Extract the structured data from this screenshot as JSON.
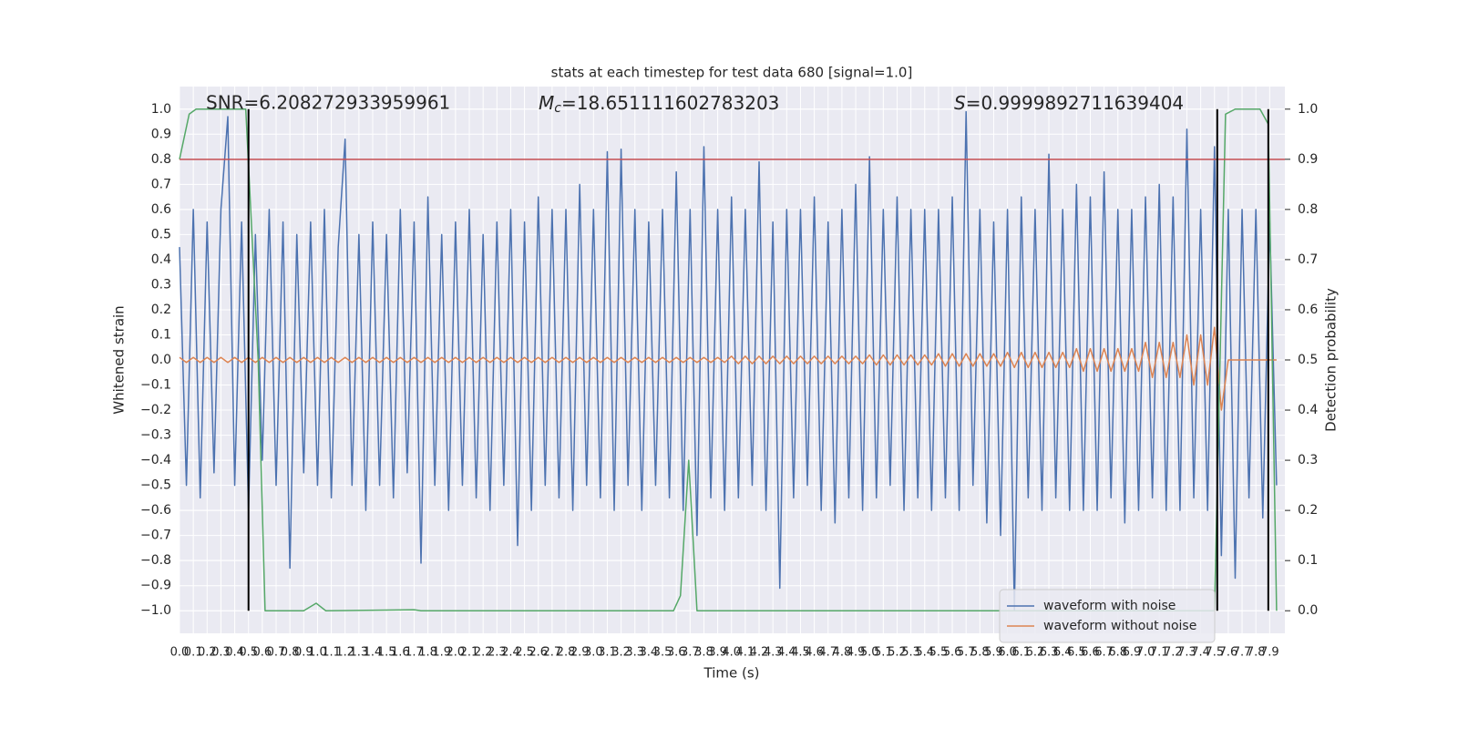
{
  "chart_data": {
    "type": "line",
    "title": "stats at each timestep for test data 680 [signal=1.0]",
    "xlabel": "Time (s)",
    "ylabel": "Whitened strain",
    "y2label": "Detection probability",
    "annotations": [
      {
        "text": "SNR=6.208272933959961"
      },
      {
        "symbol": "M",
        "subscript": "c",
        "text": "=18.651111602783203"
      },
      {
        "symbol": "S",
        "text": "=0.9999892711639404"
      }
    ],
    "x": [
      0,
      0.05,
      0.1,
      0.15,
      0.2,
      0.25,
      0.3,
      0.35,
      0.4,
      0.45,
      0.5,
      0.55,
      0.6,
      0.65,
      0.7,
      0.75,
      0.8,
      0.85,
      0.9,
      0.95,
      1,
      1.05,
      1.1,
      1.15,
      1.2,
      1.25,
      1.3,
      1.35,
      1.4,
      1.45,
      1.5,
      1.55,
      1.6,
      1.65,
      1.7,
      1.75,
      1.8,
      1.85,
      1.9,
      1.95,
      2,
      2.05,
      2.1,
      2.15,
      2.2,
      2.25,
      2.3,
      2.35,
      2.4,
      2.45,
      2.5,
      2.55,
      2.6,
      2.65,
      2.7,
      2.75,
      2.8,
      2.85,
      2.9,
      2.95,
      3,
      3.05,
      3.1,
      3.15,
      3.2,
      3.25,
      3.3,
      3.35,
      3.4,
      3.45,
      3.5,
      3.55,
      3.6,
      3.65,
      3.7,
      3.75,
      3.8,
      3.85,
      3.9,
      3.95,
      4,
      4.05,
      4.1,
      4.15,
      4.2,
      4.25,
      4.3,
      4.35,
      4.4,
      4.45,
      4.5,
      4.55,
      4.6,
      4.65,
      4.7,
      4.75,
      4.8,
      4.85,
      4.9,
      4.95,
      5,
      5.05,
      5.1,
      5.15,
      5.2,
      5.25,
      5.3,
      5.35,
      5.4,
      5.45,
      5.5,
      5.55,
      5.6,
      5.65,
      5.7,
      5.75,
      5.8,
      5.85,
      5.9,
      5.95,
      6,
      6.05,
      6.1,
      6.15,
      6.2,
      6.25,
      6.3,
      6.35,
      6.4,
      6.45,
      6.5,
      6.55,
      6.6,
      6.65,
      6.7,
      6.75,
      6.8,
      6.85,
      6.9,
      6.95,
      7,
      7.05,
      7.1,
      7.15,
      7.2,
      7.25,
      7.3,
      7.35,
      7.4,
      7.45,
      7.5,
      7.55,
      7.6,
      7.65,
      7.7,
      7.75,
      7.8,
      7.85,
      7.9,
      7.95
    ],
    "series": [
      {
        "name": "waveform with noise",
        "color": "#4c72b0",
        "values": [
          0.45,
          -0.5,
          0.6,
          -0.55,
          0.55,
          -0.45,
          0.6,
          0.97,
          -0.5,
          0.55,
          -0.6,
          0.5,
          -0.4,
          0.6,
          -0.5,
          0.55,
          -0.83,
          0.5,
          -0.45,
          0.55,
          -0.5,
          0.6,
          -0.55,
          0.45,
          0.88,
          -0.5,
          0.5,
          -0.6,
          0.55,
          -0.5,
          0.5,
          -0.55,
          0.6,
          -0.45,
          0.55,
          -0.81,
          0.65,
          -0.5,
          0.5,
          -0.6,
          0.55,
          -0.5,
          0.6,
          -0.55,
          0.5,
          -0.6,
          0.55,
          -0.5,
          0.6,
          -0.74,
          0.55,
          -0.6,
          0.65,
          -0.5,
          0.6,
          -0.55,
          0.6,
          -0.6,
          0.7,
          -0.5,
          0.6,
          -0.55,
          0.83,
          -0.6,
          0.84,
          -0.5,
          0.6,
          -0.6,
          0.55,
          -0.5,
          0.6,
          -0.55,
          0.75,
          -0.6,
          0.6,
          -0.7,
          0.85,
          -0.55,
          0.6,
          -0.6,
          0.65,
          -0.55,
          0.6,
          -0.5,
          0.79,
          -0.6,
          0.55,
          -0.91,
          0.6,
          -0.55,
          0.6,
          -0.5,
          0.65,
          -0.6,
          0.55,
          -0.65,
          0.6,
          -0.55,
          0.7,
          -0.6,
          0.81,
          -0.55,
          0.6,
          -0.5,
          0.65,
          -0.6,
          0.6,
          -0.55,
          0.6,
          -0.6,
          0.6,
          -0.55,
          0.65,
          -0.6,
          0.99,
          -0.5,
          0.6,
          -0.65,
          0.55,
          -0.7,
          0.6,
          -1.0,
          0.65,
          -0.55,
          0.6,
          -0.6,
          0.82,
          -0.55,
          0.6,
          -0.6,
          0.7,
          -0.6,
          0.65,
          -0.6,
          0.75,
          -0.55,
          0.6,
          -0.65,
          0.6,
          -0.6,
          0.65,
          -0.55,
          0.7,
          -0.6,
          0.65,
          -0.6,
          0.92,
          -0.55,
          0.6,
          -0.6,
          0.85,
          -0.78,
          0.6,
          -0.87,
          0.6,
          -0.55,
          0.6,
          -0.63,
          0.55,
          -0.5
        ]
      },
      {
        "name": "waveform without noise",
        "color": "#dd8452",
        "values": [
          0.01,
          -0.01,
          0.01,
          -0.01,
          0.01,
          -0.01,
          0.01,
          -0.01,
          0.01,
          -0.01,
          0.01,
          -0.01,
          0.01,
          -0.01,
          0.01,
          -0.01,
          0.01,
          -0.01,
          0.01,
          -0.01,
          0.01,
          -0.01,
          0.01,
          -0.01,
          0.01,
          -0.01,
          0.01,
          -0.01,
          0.01,
          -0.01,
          0.01,
          -0.01,
          0.01,
          -0.01,
          0.01,
          -0.01,
          0.01,
          -0.01,
          0.01,
          -0.01,
          0.01,
          -0.01,
          0.01,
          -0.01,
          0.01,
          -0.01,
          0.01,
          -0.01,
          0.01,
          -0.01,
          0.01,
          -0.01,
          0.01,
          -0.01,
          0.01,
          -0.01,
          0.01,
          -0.01,
          0.01,
          -0.01,
          0.01,
          -0.01,
          0.01,
          -0.01,
          0.01,
          -0.01,
          0.01,
          -0.01,
          0.01,
          -0.01,
          0.01,
          -0.01,
          0.01,
          -0.01,
          0.01,
          -0.01,
          0.01,
          -0.01,
          0.01,
          -0.01,
          0.015,
          -0.015,
          0.015,
          -0.015,
          0.015,
          -0.015,
          0.015,
          -0.015,
          0.015,
          -0.015,
          0.015,
          -0.015,
          0.015,
          -0.015,
          0.015,
          -0.015,
          0.015,
          -0.015,
          0.015,
          -0.015,
          0.02,
          -0.02,
          0.02,
          -0.02,
          0.02,
          -0.02,
          0.02,
          -0.02,
          0.02,
          -0.02,
          0.025,
          -0.025,
          0.025,
          -0.025,
          0.025,
          -0.025,
          0.025,
          -0.025,
          0.025,
          -0.025,
          0.03,
          -0.03,
          0.03,
          -0.03,
          0.03,
          -0.03,
          0.03,
          -0.03,
          0.03,
          -0.03,
          0.045,
          -0.045,
          0.045,
          -0.045,
          0.045,
          -0.045,
          0.045,
          -0.045,
          0.045,
          -0.045,
          0.07,
          -0.07,
          0.07,
          -0.07,
          0.07,
          -0.07,
          0.1,
          -0.1,
          0.1,
          -0.1,
          0.13,
          -0.2,
          0,
          0,
          0,
          0,
          0,
          0,
          0,
          0
        ]
      },
      {
        "color": "#55a868",
        "axis": "y2",
        "x": [
          0,
          0.07,
          0.12,
          0.48,
          0.57,
          0.62,
          0.9,
          0.99,
          1.06,
          1.7,
          1.75,
          3.58,
          3.63,
          3.69,
          3.75,
          7.5,
          7.58,
          7.65,
          7.83,
          7.89,
          7.95
        ],
        "values": [
          0.9,
          0.99,
          1.0,
          1.0,
          0.5,
          0,
          0,
          0.015,
          0,
          0.002,
          0,
          0,
          0.03,
          0.3,
          0,
          0,
          0.99,
          1.0,
          1.0,
          0.97,
          0
        ]
      }
    ],
    "hlines": [
      {
        "y": 0.9,
        "axis": "y2",
        "color": "#c44e52"
      }
    ],
    "vlines": [
      {
        "x": 0.5,
        "ymin": -1.0,
        "ymax": 1.0,
        "color": "#000000"
      },
      {
        "x": 7.52,
        "ymin": -1.0,
        "ymax": 1.0,
        "color": "#000000"
      },
      {
        "x": 7.89,
        "ymin": -1.0,
        "ymax": 1.0,
        "color": "#000000"
      }
    ],
    "xlim": [
      0,
      8.01
    ],
    "ylim": [
      -1.09,
      1.09
    ],
    "y2lim": [
      -0.045,
      1.045
    ],
    "xticks": [
      {
        "value": 0,
        "label": "0.0"
      },
      0.1,
      0.2,
      0.3,
      0.4,
      0.5,
      0.6,
      0.7,
      0.8,
      0.9,
      {
        "value": 1,
        "label": "1.0"
      },
      1.1,
      1.2,
      1.3,
      1.4,
      1.5,
      1.6,
      1.7,
      1.8,
      1.9,
      {
        "value": 2,
        "label": "2.0"
      },
      2.1,
      2.2,
      2.3,
      2.4,
      2.5,
      2.6,
      2.7,
      2.8,
      2.9,
      {
        "value": 3,
        "label": "3.0"
      },
      3.1,
      3.2,
      3.3,
      3.4,
      3.5,
      3.6,
      3.7,
      3.8,
      3.9,
      {
        "value": 4,
        "label": "4.0"
      },
      4.1,
      4.2,
      4.3,
      4.4,
      4.5,
      4.6,
      4.7,
      4.8,
      4.9,
      {
        "value": 5,
        "label": "5.0"
      },
      5.1,
      5.2,
      5.3,
      5.4,
      5.5,
      5.6,
      5.7,
      5.8,
      5.9,
      {
        "value": 6,
        "label": "6.0"
      },
      6.1,
      6.2,
      6.3,
      6.4,
      6.5,
      6.6,
      6.7,
      6.8,
      6.9,
      {
        "value": 7,
        "label": "7.0"
      },
      7.1,
      7.2,
      7.3,
      7.4,
      7.5,
      7.6,
      7.7,
      7.8,
      7.9
    ],
    "yticks": [
      {
        "value": -1,
        "label": "−1.0"
      },
      {
        "value": -0.9,
        "label": "−0.9"
      },
      {
        "value": -0.8,
        "label": "−0.8"
      },
      {
        "value": -0.7,
        "label": "−0.7"
      },
      {
        "value": -0.6,
        "label": "−0.6"
      },
      {
        "value": -0.5,
        "label": "−0.5"
      },
      {
        "value": -0.4,
        "label": "−0.4"
      },
      {
        "value": -0.3,
        "label": "−0.3"
      },
      {
        "value": -0.2,
        "label": "−0.2"
      },
      {
        "value": -0.1,
        "label": "−0.1"
      },
      {
        "value": 0,
        "label": "0.0"
      },
      0.1,
      0.2,
      0.3,
      0.4,
      0.5,
      0.6,
      0.7,
      0.8,
      0.9,
      {
        "value": 1,
        "label": "1.0"
      }
    ],
    "y2ticks": [
      {
        "value": 0,
        "label": "0.0"
      },
      0.1,
      0.2,
      0.3,
      0.4,
      0.5,
      0.6,
      0.7,
      0.8,
      0.9,
      {
        "value": 1,
        "label": "1.0"
      }
    ],
    "grid": true,
    "legend": "lower right"
  }
}
